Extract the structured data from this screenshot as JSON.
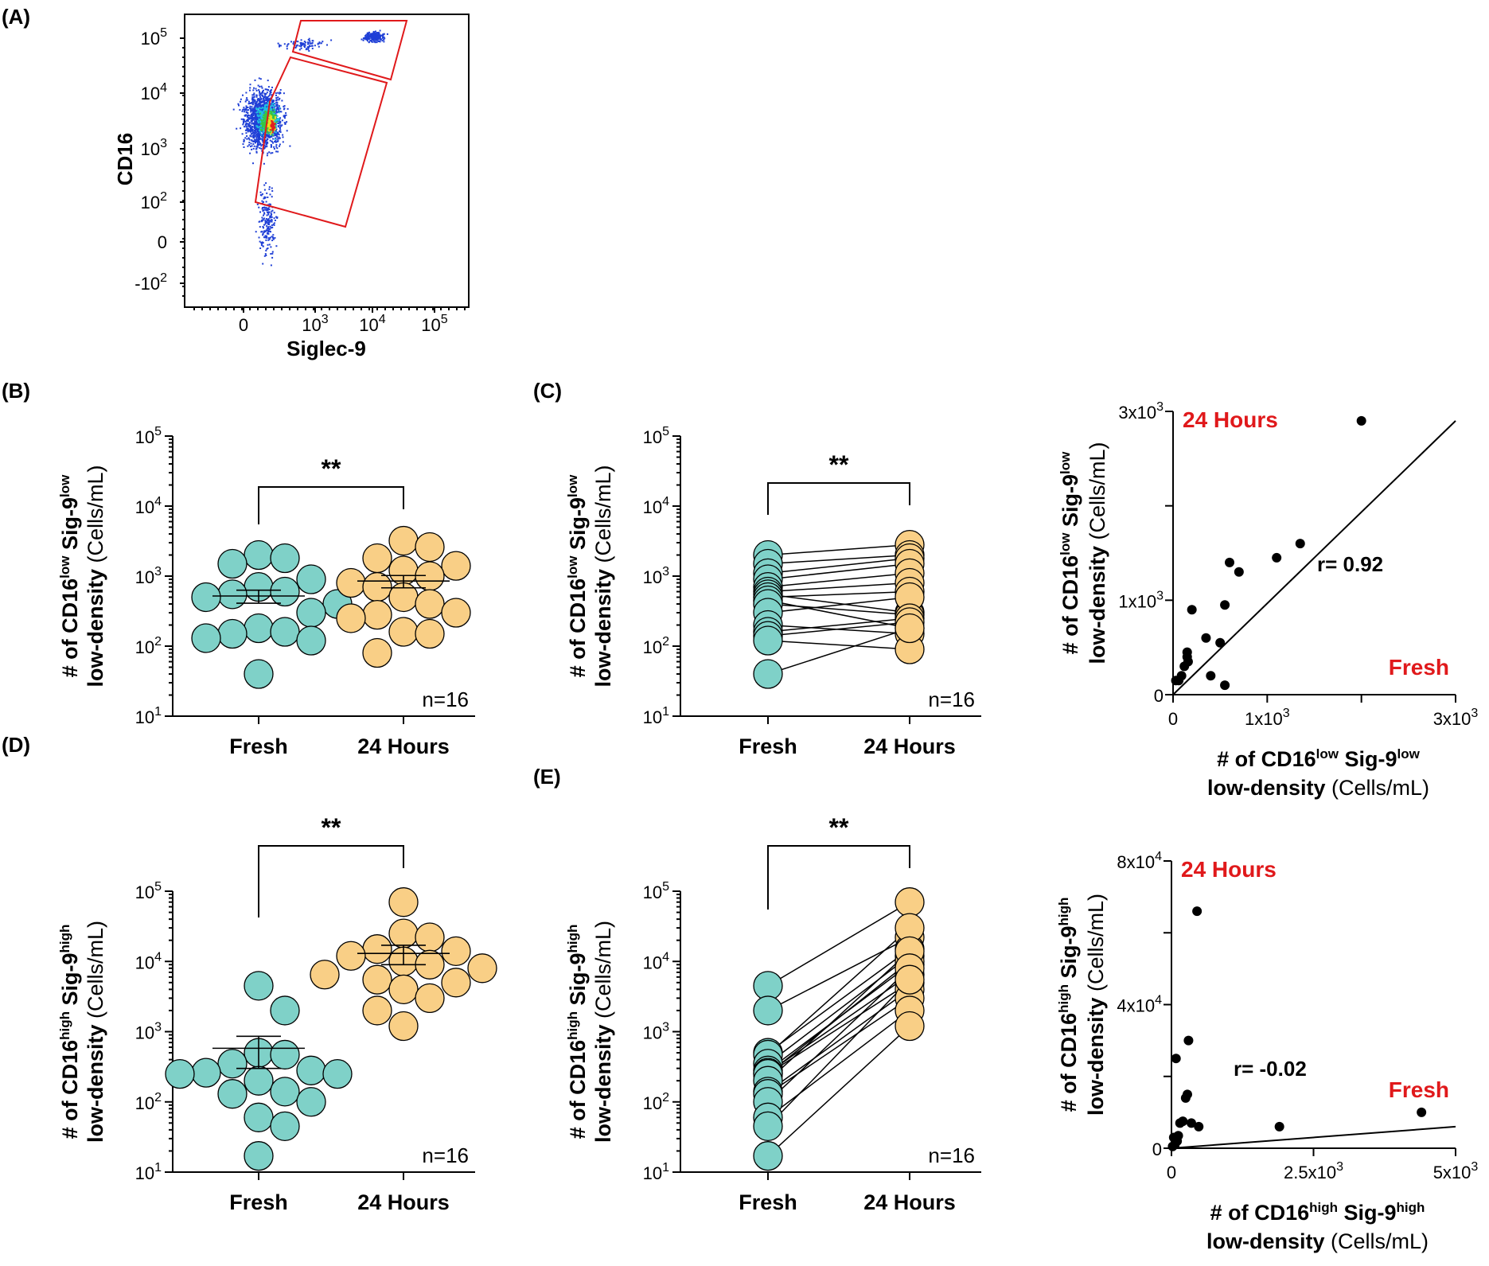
{
  "colors": {
    "fresh": "#7fd1c8",
    "hours24": "#f9cf86",
    "gate": "#e0191b",
    "label_red": "#e0191b"
  },
  "panel_labels": {
    "a": "(A)",
    "b": "(B)",
    "c": "(C)",
    "d": "(D)",
    "e": "(E)"
  },
  "flow": {
    "xlabel": "Siglec-9",
    "ylabel": "CD16",
    "x_ticks": [
      "0",
      "10",
      "10",
      "10"
    ],
    "x_tick_exp": [
      "",
      "3",
      "4",
      "5"
    ],
    "y_ticks": [
      "10",
      "10",
      "10",
      "10",
      "0",
      "-10"
    ],
    "y_tick_exp": [
      "5",
      "4",
      "3",
      "2",
      "",
      "2"
    ]
  },
  "common": {
    "categories": [
      "Fresh",
      "24 Hours"
    ],
    "log_ticks": [
      "10",
      "10",
      "10",
      "10",
      "10"
    ],
    "log_tick_exp": [
      "1",
      "2",
      "3",
      "4",
      "5"
    ],
    "units": "(Cells/mL)",
    "n": "n=16",
    "sig": "**"
  },
  "ylabel_low": {
    "pre": "# of CD16",
    "sup1": "low",
    "mid": " Sig-9",
    "sup2": "low",
    "line2a": "low-density ",
    "line2b": "(Cells/mL)"
  },
  "ylabel_high": {
    "pre": "# of CD16",
    "sup1": "high",
    "mid": " Sig-9",
    "sup2": "high",
    "line2a": "low-density ",
    "line2b": "(Cells/mL)"
  },
  "chart_data": [
    {
      "id": "B",
      "type": "scatter",
      "title": "",
      "ylabel": "# of CD16low Sig-9low low-density (Cells/mL)",
      "yscale": "log",
      "ylim": [
        10,
        100000
      ],
      "categories": [
        "Fresh",
        "24 Hours"
      ],
      "series": [
        {
          "name": "Fresh",
          "values": [
            2000,
            1800,
            1500,
            900,
            700,
            600,
            550,
            500,
            400,
            300,
            180,
            160,
            150,
            130,
            120,
            40
          ]
        },
        {
          "name": "24 Hours",
          "values": [
            3200,
            2600,
            1800,
            1400,
            1200,
            1000,
            800,
            700,
            500,
            400,
            300,
            280,
            250,
            160,
            150,
            80
          ]
        }
      ],
      "means": [
        520,
        850
      ],
      "sem": [
        [
          410,
          630
        ],
        [
          680,
          1020
        ]
      ],
      "significance": "**",
      "n": "n=16"
    },
    {
      "id": "C",
      "type": "line",
      "title": "",
      "ylabel": "# of CD16low Sig-9low low-density (Cells/mL)",
      "yscale": "log",
      "ylim": [
        10,
        100000
      ],
      "categories": [
        "Fresh",
        "24 Hours"
      ],
      "pairs": [
        [
          2000,
          2800
        ],
        [
          1500,
          2000
        ],
        [
          1100,
          1800
        ],
        [
          900,
          1500
        ],
        [
          700,
          1100
        ],
        [
          600,
          800
        ],
        [
          550,
          300
        ],
        [
          500,
          600
        ],
        [
          450,
          180
        ],
        [
          400,
          280
        ],
        [
          300,
          500
        ],
        [
          200,
          150
        ],
        [
          160,
          250
        ],
        [
          140,
          220
        ],
        [
          120,
          90
        ],
        [
          40,
          180
        ]
      ],
      "significance": "**",
      "n": "n=16"
    },
    {
      "id": "C-corr",
      "type": "scatter",
      "title": "",
      "xlabel": "# of CD16low Sig-9low low-density (Cells/mL)",
      "ylabel": "# of CD16low Sig-9low low-density (Cells/mL)",
      "xlim": [
        0,
        3000
      ],
      "ylim": [
        0,
        3000
      ],
      "x_ticks": [
        "0",
        "1x10",
        "3x10"
      ],
      "x_tick_exp": [
        "",
        "3",
        "3"
      ],
      "y_ticks": [
        "0",
        "1x10",
        "3x10"
      ],
      "y_tick_exp": [
        "",
        "3",
        "3"
      ],
      "x": [
        30,
        60,
        90,
        120,
        150,
        150,
        160,
        200,
        350,
        400,
        500,
        550,
        700,
        600,
        1100,
        1350,
        2000,
        550
      ],
      "y": [
        150,
        150,
        200,
        300,
        400,
        450,
        350,
        900,
        600,
        200,
        550,
        950,
        1300,
        1400,
        1450,
        1600,
        2900,
        100
      ],
      "fit_line": [
        [
          0,
          0
        ],
        [
          3000,
          2900
        ]
      ],
      "r": "r= 0.92",
      "corner_labels": [
        "24 Hours",
        "Fresh"
      ]
    },
    {
      "id": "D",
      "type": "scatter",
      "title": "",
      "ylabel": "# of CD16high Sig-9high low-density (Cells/mL)",
      "yscale": "log",
      "ylim": [
        10,
        100000
      ],
      "categories": [
        "Fresh",
        "24 Hours"
      ],
      "series": [
        {
          "name": "Fresh",
          "values": [
            4500,
            2000,
            500,
            470,
            350,
            280,
            260,
            250,
            250,
            200,
            140,
            130,
            100,
            60,
            45,
            17
          ]
        },
        {
          "name": "24 Hours",
          "values": [
            70000,
            25000,
            22000,
            15000,
            14000,
            12000,
            10000,
            9000,
            8000,
            6500,
            5500,
            5000,
            4000,
            3000,
            2000,
            1200
          ]
        }
      ],
      "means": [
        580,
        13000
      ],
      "sem": [
        [
          300,
          860
        ],
        [
          9000,
          17000
        ]
      ],
      "significance": "**",
      "n": "n=16"
    },
    {
      "id": "E",
      "type": "line",
      "title": "",
      "ylabel": "# of CD16high Sig-9high low-density (Cells/mL)",
      "yscale": "log",
      "ylim": [
        10,
        100000
      ],
      "categories": [
        "Fresh",
        "24 Hours"
      ],
      "pairs": [
        [
          4500,
          70000
        ],
        [
          2000,
          22000
        ],
        [
          500,
          15000
        ],
        [
          470,
          30000
        ],
        [
          350,
          12000
        ],
        [
          280,
          9000
        ],
        [
          260,
          6500
        ],
        [
          250,
          10000
        ],
        [
          250,
          5000
        ],
        [
          200,
          14000
        ],
        [
          140,
          4000
        ],
        [
          130,
          3000
        ],
        [
          100,
          8000
        ],
        [
          60,
          2000
        ],
        [
          45,
          5500
        ],
        [
          17,
          1200
        ]
      ],
      "significance": "**",
      "n": "n=16"
    },
    {
      "id": "E-corr",
      "type": "scatter",
      "title": "",
      "xlabel": "# of CD16high Sig-9high low-density (Cells/mL)",
      "ylabel": "# of CD16high Sig-9high low-density (Cells/mL)",
      "xlim": [
        0,
        5000
      ],
      "ylim": [
        0,
        80000
      ],
      "x_ticks": [
        "0",
        "2.5x10",
        "5x10"
      ],
      "x_tick_exp": [
        "",
        "3",
        "3"
      ],
      "y_ticks": [
        "0",
        "4x10",
        "8x10"
      ],
      "y_tick_exp": [
        "",
        "4",
        "4"
      ],
      "x": [
        20,
        40,
        60,
        80,
        100,
        120,
        150,
        200,
        250,
        280,
        300,
        350,
        450,
        480,
        1900,
        4400
      ],
      "y": [
        500,
        3000,
        1000,
        25000,
        2000,
        3500,
        7000,
        7500,
        14000,
        15000,
        30000,
        7000,
        66000,
        6000,
        6000,
        10000
      ],
      "fit_line": [
        [
          0,
          0
        ],
        [
          5000,
          6000
        ]
      ],
      "r": "r= -0.02",
      "corner_labels": [
        "24 Hours",
        "Fresh"
      ]
    }
  ]
}
